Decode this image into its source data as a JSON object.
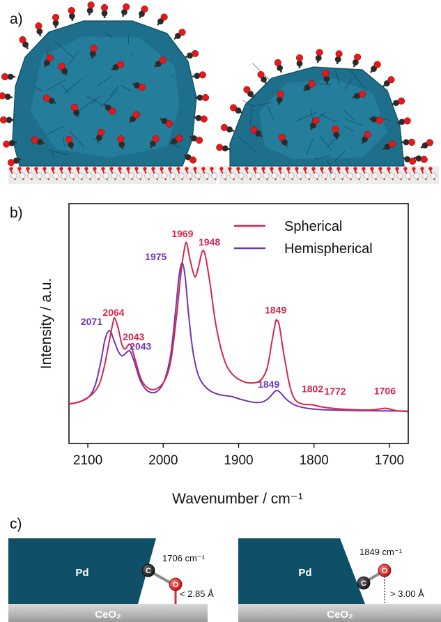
{
  "panels": {
    "a": "a)",
    "b": "b)",
    "c": "c)"
  },
  "chart_data": {
    "type": "line",
    "title": "",
    "xlabel": "Wavenumber / cm⁻¹",
    "ylabel": "Intensity / a.u.",
    "xlim": [
      2125,
      1675
    ],
    "ylim": [
      0,
      1.1
    ],
    "x_reversed": true,
    "grid": false,
    "legend_position": "top-right",
    "xticks": [
      2100,
      2000,
      1900,
      1800,
      1700
    ],
    "series": [
      {
        "name": "Spherical",
        "color": "#d6264b",
        "peaks": [
          {
            "x": 2064,
            "label": "2064"
          },
          {
            "x": 2043,
            "label": "2043"
          },
          {
            "x": 1969,
            "label": "1969"
          },
          {
            "x": 1948,
            "label": "1948"
          },
          {
            "x": 1849,
            "label": "1849"
          },
          {
            "x": 1802,
            "label": "1802"
          },
          {
            "x": 1772,
            "label": "1772"
          },
          {
            "x": 1706,
            "label": "1706"
          }
        ],
        "points": [
          [
            2125,
            0.085
          ],
          [
            2110,
            0.1
          ],
          [
            2095,
            0.14
          ],
          [
            2085,
            0.2
          ],
          [
            2078,
            0.31
          ],
          [
            2071,
            0.47
          ],
          [
            2066,
            0.58
          ],
          [
            2064,
            0.59
          ],
          [
            2060,
            0.54
          ],
          [
            2055,
            0.44
          ],
          [
            2051,
            0.41
          ],
          [
            2047,
            0.43
          ],
          [
            2045,
            0.44
          ],
          [
            2042,
            0.42
          ],
          [
            2036,
            0.33
          ],
          [
            2028,
            0.22
          ],
          [
            2015,
            0.17
          ],
          [
            2000,
            0.21
          ],
          [
            1990,
            0.34
          ],
          [
            1982,
            0.62
          ],
          [
            1976,
            0.88
          ],
          [
            1972,
            1.0
          ],
          [
            1969,
            1.04
          ],
          [
            1965,
            0.95
          ],
          [
            1960,
            0.86
          ],
          [
            1957,
            0.84
          ],
          [
            1953,
            0.9
          ],
          [
            1948,
            0.99
          ],
          [
            1944,
            0.96
          ],
          [
            1938,
            0.8
          ],
          [
            1930,
            0.55
          ],
          [
            1920,
            0.36
          ],
          [
            1910,
            0.27
          ],
          [
            1895,
            0.22
          ],
          [
            1880,
            0.21
          ],
          [
            1870,
            0.23
          ],
          [
            1862,
            0.3
          ],
          [
            1856,
            0.45
          ],
          [
            1851,
            0.57
          ],
          [
            1849,
            0.58
          ],
          [
            1846,
            0.55
          ],
          [
            1840,
            0.38
          ],
          [
            1832,
            0.19
          ],
          [
            1825,
            0.11
          ],
          [
            1815,
            0.085
          ],
          [
            1802,
            0.08
          ],
          [
            1790,
            0.068
          ],
          [
            1772,
            0.058
          ],
          [
            1755,
            0.053
          ],
          [
            1740,
            0.05
          ],
          [
            1725,
            0.05
          ],
          [
            1712,
            0.056
          ],
          [
            1706,
            0.06
          ],
          [
            1700,
            0.056
          ],
          [
            1690,
            0.045
          ],
          [
            1675,
            0.04
          ]
        ]
      },
      {
        "name": "Hemispherical",
        "color": "#6f36b0",
        "peaks": [
          {
            "x": 2071,
            "label": "2071"
          },
          {
            "x": 2043,
            "label": "2043"
          },
          {
            "x": 1975,
            "label": "1975"
          },
          {
            "x": 1849,
            "label": "1849"
          }
        ],
        "points": [
          [
            2125,
            0.085
          ],
          [
            2110,
            0.1
          ],
          [
            2098,
            0.13
          ],
          [
            2090,
            0.2
          ],
          [
            2083,
            0.33
          ],
          [
            2077,
            0.47
          ],
          [
            2071,
            0.52
          ],
          [
            2066,
            0.47
          ],
          [
            2060,
            0.4
          ],
          [
            2055,
            0.37
          ],
          [
            2051,
            0.38
          ],
          [
            2046,
            0.4
          ],
          [
            2043,
            0.39
          ],
          [
            2038,
            0.33
          ],
          [
            2030,
            0.22
          ],
          [
            2020,
            0.16
          ],
          [
            2008,
            0.16
          ],
          [
            1998,
            0.23
          ],
          [
            1990,
            0.38
          ],
          [
            1984,
            0.62
          ],
          [
            1979,
            0.84
          ],
          [
            1975,
            0.92
          ],
          [
            1971,
            0.84
          ],
          [
            1966,
            0.6
          ],
          [
            1960,
            0.38
          ],
          [
            1952,
            0.24
          ],
          [
            1940,
            0.17
          ],
          [
            1925,
            0.14
          ],
          [
            1910,
            0.13
          ],
          [
            1895,
            0.11
          ],
          [
            1880,
            0.095
          ],
          [
            1868,
            0.098
          ],
          [
            1860,
            0.12
          ],
          [
            1853,
            0.155
          ],
          [
            1849,
            0.165
          ],
          [
            1844,
            0.15
          ],
          [
            1836,
            0.11
          ],
          [
            1826,
            0.08
          ],
          [
            1815,
            0.065
          ],
          [
            1800,
            0.055
          ],
          [
            1780,
            0.05
          ],
          [
            1760,
            0.048
          ],
          [
            1740,
            0.046
          ],
          [
            1720,
            0.045
          ],
          [
            1700,
            0.044
          ],
          [
            1675,
            0.043
          ]
        ]
      }
    ]
  },
  "diagram": {
    "left": {
      "metal_label": "Pd",
      "support_label": "CeO₂",
      "frequency": "1706 cm⁻¹",
      "distance": "< 2.85 Å",
      "carbon": "C",
      "oxygen": "O"
    },
    "right": {
      "metal_label": "Pd",
      "support_label": "CeO₂",
      "frequency": "1849 cm⁻¹",
      "distance": "> 3.00 Å",
      "carbon": "C",
      "oxygen": "O"
    }
  },
  "colors": {
    "pd_dark": "#0f5068",
    "pd_light": "#1f7f9e",
    "carbon_atom": "#2b2b2b",
    "oxygen_atom": "#e41a1a",
    "support_grey": "#a9a9a9",
    "support_light": "#e4e4e4"
  }
}
